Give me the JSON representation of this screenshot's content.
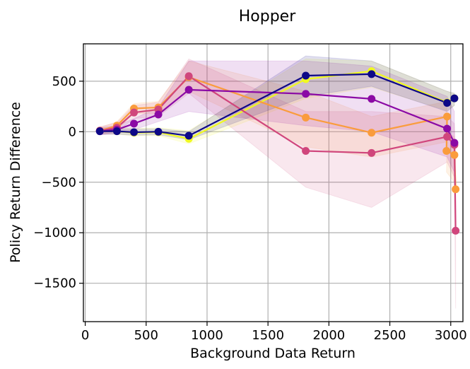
{
  "chart_data": {
    "type": "line",
    "title": "Hopper",
    "xlabel": "Background Data Return",
    "ylabel": "Policy Return Difference",
    "xlim": [
      -15,
      3100
    ],
    "ylim": [
      -1880,
      870
    ],
    "xticks": [
      0,
      500,
      1000,
      1500,
      2000,
      2500,
      3000
    ],
    "yticks": [
      500,
      0,
      -500,
      -1000,
      -1500
    ],
    "xtick_labels": [
      "0",
      "500",
      "1000",
      "1500",
      "2000",
      "2500",
      "3000"
    ],
    "ytick_labels": [
      "500",
      "0",
      "−500",
      "−1000",
      "−1500"
    ],
    "grid": true,
    "series": [
      {
        "color": "#f0f921",
        "points": [
          [
            120,
            10
          ],
          [
            260,
            5
          ],
          [
            400,
            -10
          ],
          [
            600,
            -5
          ],
          [
            850,
            -70
          ],
          [
            1810,
            520
          ],
          [
            2350,
            600
          ],
          [
            2970,
            290
          ],
          [
            3030,
            330
          ]
        ],
        "band_upper": [
          40,
          40,
          30,
          40,
          10,
          720,
          700,
          400,
          380
        ],
        "band_lower": [
          -20,
          -25,
          -40,
          -40,
          -120,
          330,
          440,
          210,
          260
        ]
      },
      {
        "color": "#fa9c3c",
        "points": [
          [
            120,
            10
          ],
          [
            260,
            60
          ],
          [
            400,
            230
          ],
          [
            600,
            240
          ],
          [
            850,
            540
          ],
          [
            1810,
            140
          ],
          [
            2350,
            -10
          ],
          [
            2970,
            150
          ],
          [
            2965,
            -190
          ],
          [
            3030,
            -230
          ],
          [
            3040,
            -570
          ]
        ],
        "band_upper": [
          40,
          100,
          280,
          300,
          700,
          400,
          150,
          300,
          0,
          -50,
          -200
        ],
        "band_lower": [
          -20,
          20,
          180,
          180,
          400,
          -150,
          -250,
          -100,
          -400,
          -500,
          -900
        ]
      },
      {
        "color": "#d0467c",
        "points": [
          [
            120,
            10
          ],
          [
            260,
            40
          ],
          [
            400,
            190
          ],
          [
            600,
            220
          ],
          [
            850,
            550
          ],
          [
            1810,
            -190
          ],
          [
            2350,
            -210
          ],
          [
            2970,
            -50
          ],
          [
            3030,
            -130
          ],
          [
            3040,
            -980
          ]
        ],
        "band_upper": [
          50,
          90,
          260,
          290,
          720,
          200,
          200,
          150,
          80,
          -200
        ],
        "band_lower": [
          -30,
          0,
          130,
          150,
          380,
          -550,
          -750,
          -300,
          -450,
          -1750
        ]
      },
      {
        "color": "#8b0aa5",
        "points": [
          [
            120,
            5
          ],
          [
            260,
            20
          ],
          [
            400,
            80
          ],
          [
            600,
            170
          ],
          [
            850,
            415
          ],
          [
            1810,
            375
          ],
          [
            2350,
            325
          ],
          [
            2970,
            30
          ],
          [
            3030,
            -110
          ]
        ],
        "band_upper": [
          40,
          60,
          130,
          240,
          700,
          700,
          650,
          350,
          200
        ],
        "band_lower": [
          -30,
          -20,
          20,
          100,
          200,
          60,
          0,
          -250,
          -400
        ]
      },
      {
        "color": "#0d0887",
        "points": [
          [
            120,
            5
          ],
          [
            260,
            5
          ],
          [
            400,
            -5
          ],
          [
            600,
            0
          ],
          [
            850,
            -40
          ],
          [
            1810,
            555
          ],
          [
            2350,
            570
          ],
          [
            2970,
            285
          ],
          [
            3030,
            330
          ]
        ],
        "band_upper": [
          30,
          30,
          25,
          30,
          0,
          750,
          700,
          400,
          380
        ],
        "band_lower": [
          -25,
          -25,
          -35,
          -30,
          -80,
          350,
          450,
          200,
          260
        ]
      }
    ]
  }
}
